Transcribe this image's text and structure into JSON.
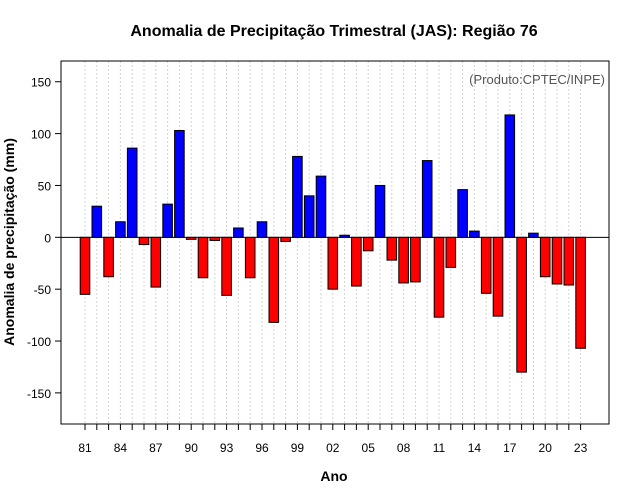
{
  "chart_data": {
    "type": "bar",
    "title": "Anomalia de Precipitação Trimestral (JAS): Região 76",
    "credit": "(Produto:CPTEC/INPE)",
    "xlabel": "Ano",
    "ylabel": "Anomalia de precipitação (mm)",
    "ylim": [
      -180,
      170
    ],
    "yticks": [
      -150,
      -100,
      -50,
      0,
      50,
      100,
      150
    ],
    "xtick_labels": [
      "81",
      "84",
      "87",
      "90",
      "93",
      "96",
      "99",
      "02",
      "05",
      "08",
      "11",
      "14",
      "17",
      "20",
      "23"
    ],
    "categories": [
      "1981",
      "1982",
      "1983",
      "1984",
      "1985",
      "1986",
      "1987",
      "1988",
      "1989",
      "1990",
      "1991",
      "1992",
      "1993",
      "1994",
      "1995",
      "1996",
      "1997",
      "1998",
      "1999",
      "2000",
      "2001",
      "2002",
      "2003",
      "2004",
      "2005",
      "2006",
      "2007",
      "2008",
      "2009",
      "2010",
      "2011",
      "2012",
      "2013",
      "2014",
      "2015",
      "2016",
      "2017",
      "2018",
      "2019",
      "2020",
      "2021",
      "2022",
      "2023"
    ],
    "values": [
      -55,
      30,
      -38,
      15,
      86,
      -7,
      -48,
      32,
      103,
      -2,
      -39,
      -3,
      -56,
      9,
      -39,
      15,
      -82,
      -4,
      78,
      40,
      59,
      -50,
      2,
      -47,
      -13,
      50,
      -22,
      -44,
      -43,
      74,
      -77,
      -29,
      46,
      6,
      -54,
      -76,
      118,
      -130,
      4,
      -38,
      -45,
      -46,
      -107
    ],
    "colors": {
      "positive": "#0000ff",
      "negative": "#ff0000",
      "grid": "#d3d3d3"
    }
  }
}
